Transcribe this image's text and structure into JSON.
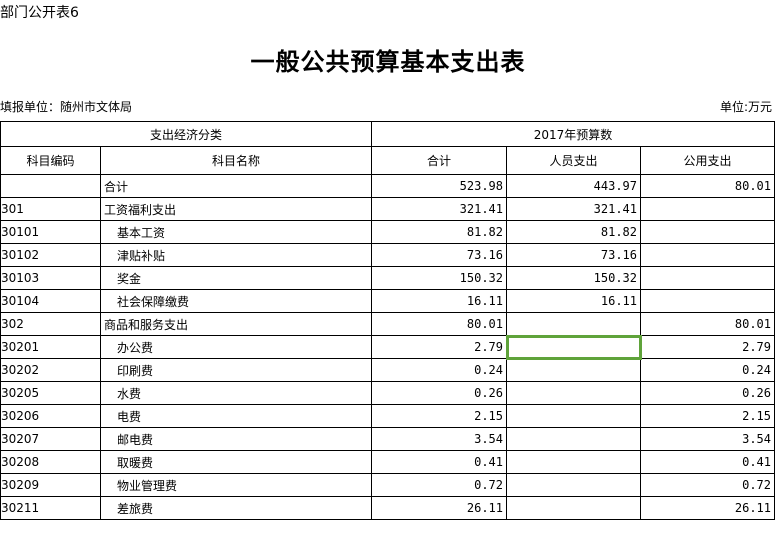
{
  "form_label": "部门公开表6",
  "title": "一般公共预算基本支出表",
  "filler": "填报单位：随州市文体局",
  "unit": "单位:万元",
  "header": {
    "group1": "支出经济分类",
    "group2": "2017年预算数",
    "code": "科目编码",
    "name": "科目名称",
    "total": "合计",
    "personnel": "人员支出",
    "public": "公用支出"
  },
  "selection_color": "#5fa33a",
  "rows": [
    {
      "code": "",
      "name": "合计",
      "total": "523.98",
      "personnel": "443.97",
      "public": "80.01"
    },
    {
      "code": "301",
      "name": "工资福利支出",
      "total": "321.41",
      "personnel": "321.41",
      "public": ""
    },
    {
      "code": "30101",
      "name": "基本工资",
      "total": "81.82",
      "personnel": "81.82",
      "public": ""
    },
    {
      "code": "30102",
      "name": "津贴补贴",
      "total": "73.16",
      "personnel": "73.16",
      "public": ""
    },
    {
      "code": "30103",
      "name": "奖金",
      "total": "150.32",
      "personnel": "150.32",
      "public": ""
    },
    {
      "code": "30104",
      "name": "社会保障缴费",
      "total": "16.11",
      "personnel": "16.11",
      "public": ""
    },
    {
      "code": "302",
      "name": "商品和服务支出",
      "total": "80.01",
      "personnel": "",
      "public": "80.01"
    },
    {
      "code": "30201",
      "name": "办公费",
      "total": "2.79",
      "personnel": "",
      "public": "2.79"
    },
    {
      "code": "30202",
      "name": "印刷费",
      "total": "0.24",
      "personnel": "",
      "public": "0.24"
    },
    {
      "code": "30205",
      "name": "水费",
      "total": "0.26",
      "personnel": "",
      "public": "0.26"
    },
    {
      "code": "30206",
      "name": "电费",
      "total": "2.15",
      "personnel": "",
      "public": "2.15"
    },
    {
      "code": "30207",
      "name": "邮电费",
      "total": "3.54",
      "personnel": "",
      "public": "3.54"
    },
    {
      "code": "30208",
      "name": "取暖费",
      "total": "0.41",
      "personnel": "",
      "public": "0.41"
    },
    {
      "code": "30209",
      "name": "物业管理费",
      "total": "0.72",
      "personnel": "",
      "public": "0.72"
    },
    {
      "code": "30211",
      "name": "差旅费",
      "total": "26.11",
      "personnel": "",
      "public": "26.11"
    }
  ]
}
